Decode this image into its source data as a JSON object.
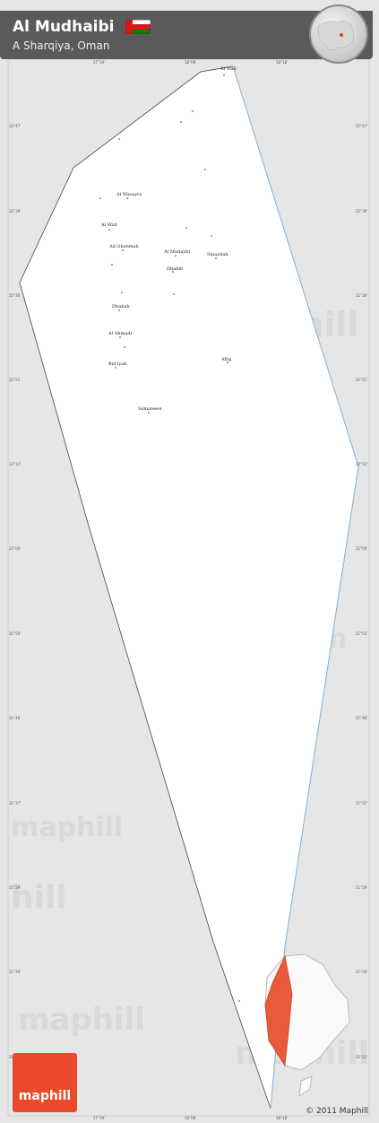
{
  "header": {
    "title": "Al Mudhaibi",
    "subtitle": "A Sharqiya, Oman",
    "flag_colors": [
      "#ffffff",
      "#db161b",
      "#008000"
    ]
  },
  "map": {
    "region_color": "#ffffff",
    "background_color": "#e6e6e6",
    "border_color": "#444444",
    "river_color": "#8fbfe8",
    "watermark": "maphill",
    "places": [
      {
        "name": "Al Wafi"
      },
      {
        "name": "Al Wasayra"
      },
      {
        "name": "Al Wafi"
      },
      {
        "name": "Al Mudaybi"
      },
      {
        "name": "Sinaydah"
      },
      {
        "name": "Ad Ghanmah"
      },
      {
        "name": "Dhahib"
      },
      {
        "name": "Dhabah"
      },
      {
        "name": "Al Ahmadi"
      },
      {
        "name": "Bid'iyah"
      },
      {
        "name": "Aflaj"
      },
      {
        "name": "Samaneen"
      }
    ],
    "lat_ticks": [
      "22°47'",
      "22°39'",
      "22°30'",
      "22°21'",
      "22°12'",
      "22°04'",
      "21°55'",
      "21°46'",
      "21°37'",
      "21°29'",
      "21°20'",
      "21°11'"
    ],
    "lon_ticks": [
      "57°39'",
      "58°09'",
      "58°18'"
    ]
  },
  "footer": {
    "logo_text": "maphill",
    "copyright": "© 2011 Maphill"
  }
}
